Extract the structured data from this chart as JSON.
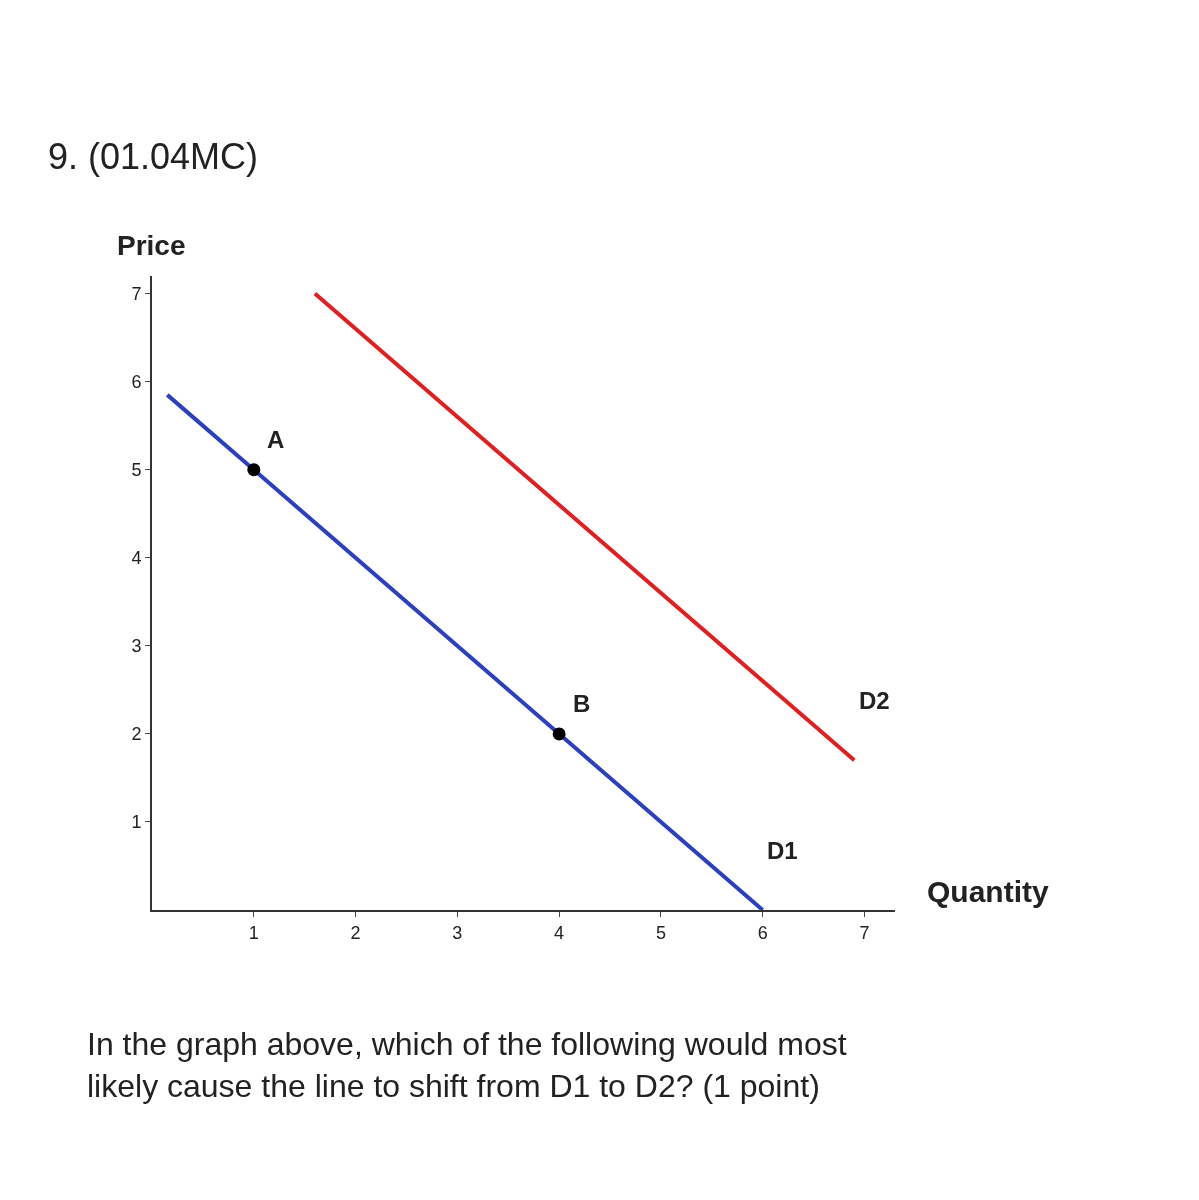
{
  "chart_data": {
    "type": "line",
    "title": "9. (01.04MC)",
    "xlabel": "Quantity",
    "ylabel": "Price",
    "series": [
      {
        "name": "D1",
        "color": "#2b3fbf",
        "x": [
          0.15,
          6
        ],
        "values": [
          5.85,
          0
        ],
        "marker": "none"
      },
      {
        "name": "D2",
        "color": "#e02020",
        "x": [
          1.6,
          6.9
        ],
        "values": [
          7.0,
          1.7
        ],
        "marker": "none"
      },
      {
        "type": "scatter",
        "color": "#000000",
        "x": [
          1,
          4
        ],
        "values": [
          5,
          2
        ],
        "marker": "circle"
      }
    ],
    "annotations": [
      {
        "text": "A",
        "x": 1,
        "y": 5
      },
      {
        "text": "B",
        "x": 4,
        "y": 2
      },
      "In the graph above, which of the following would most likely cause the line to shift from D1 to D2? (1 point)"
    ],
    "xlim": [
      0,
      7.3
    ],
    "ylim": [
      0,
      7.2
    ],
    "xticks": [
      1,
      2,
      3,
      4,
      5,
      6,
      7
    ],
    "yticks": [
      1,
      2,
      3,
      4,
      5,
      6,
      7
    ],
    "legend": false
  }
}
